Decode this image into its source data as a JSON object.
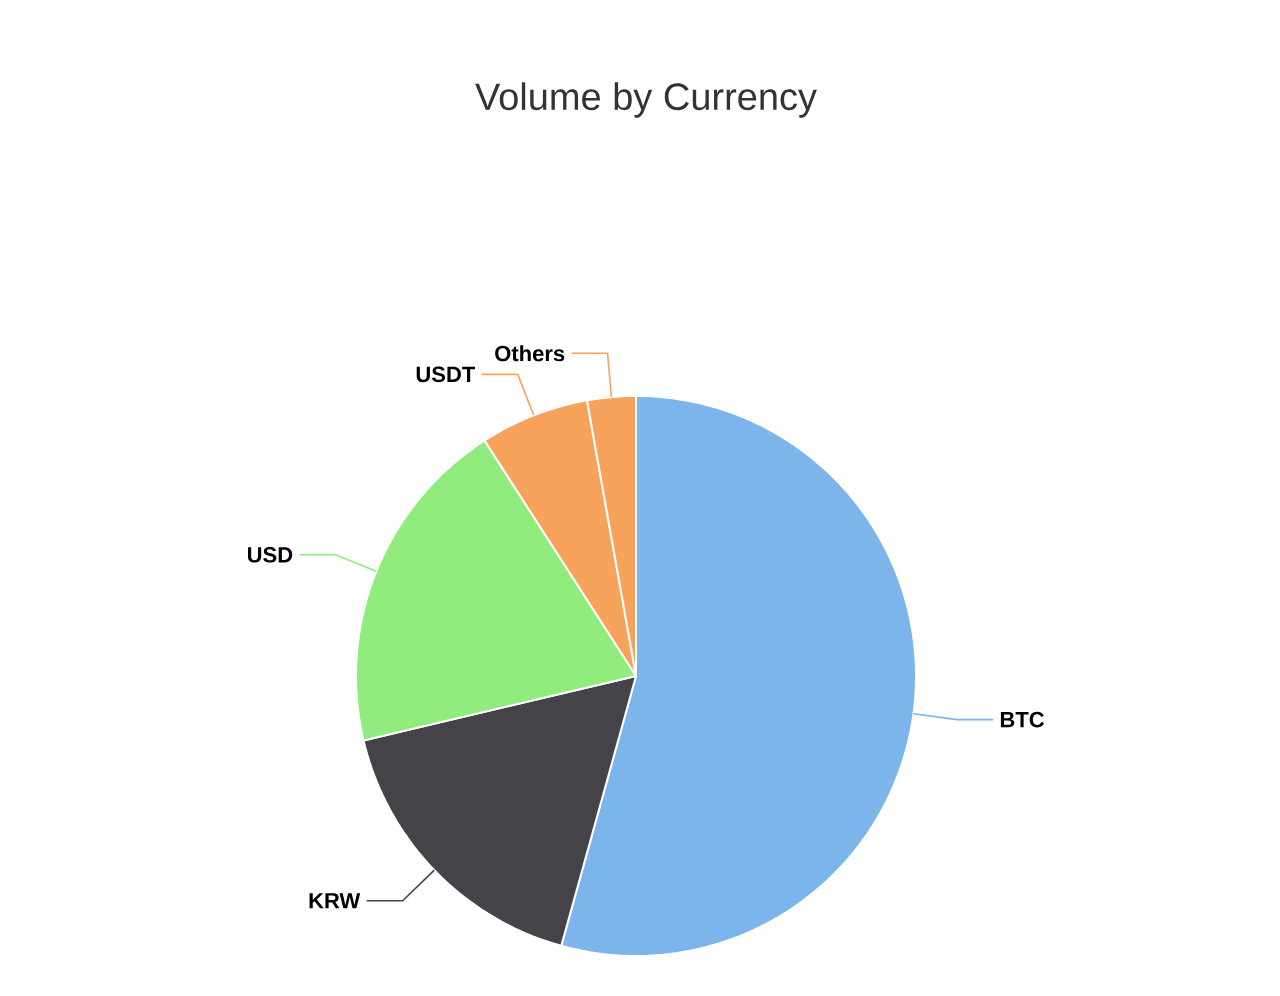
{
  "chart_data": {
    "type": "pie",
    "title": "Volume by Currency",
    "categories": [
      "BTC",
      "KRW",
      "USD",
      "USDT",
      "Others"
    ],
    "values": [
      54.3,
      17,
      19.6,
      6.3,
      2.8
    ],
    "colors": [
      "#7cb5ec",
      "#434348",
      "#90ed7d",
      "#f7a35c",
      "#f7a35c"
    ]
  }
}
